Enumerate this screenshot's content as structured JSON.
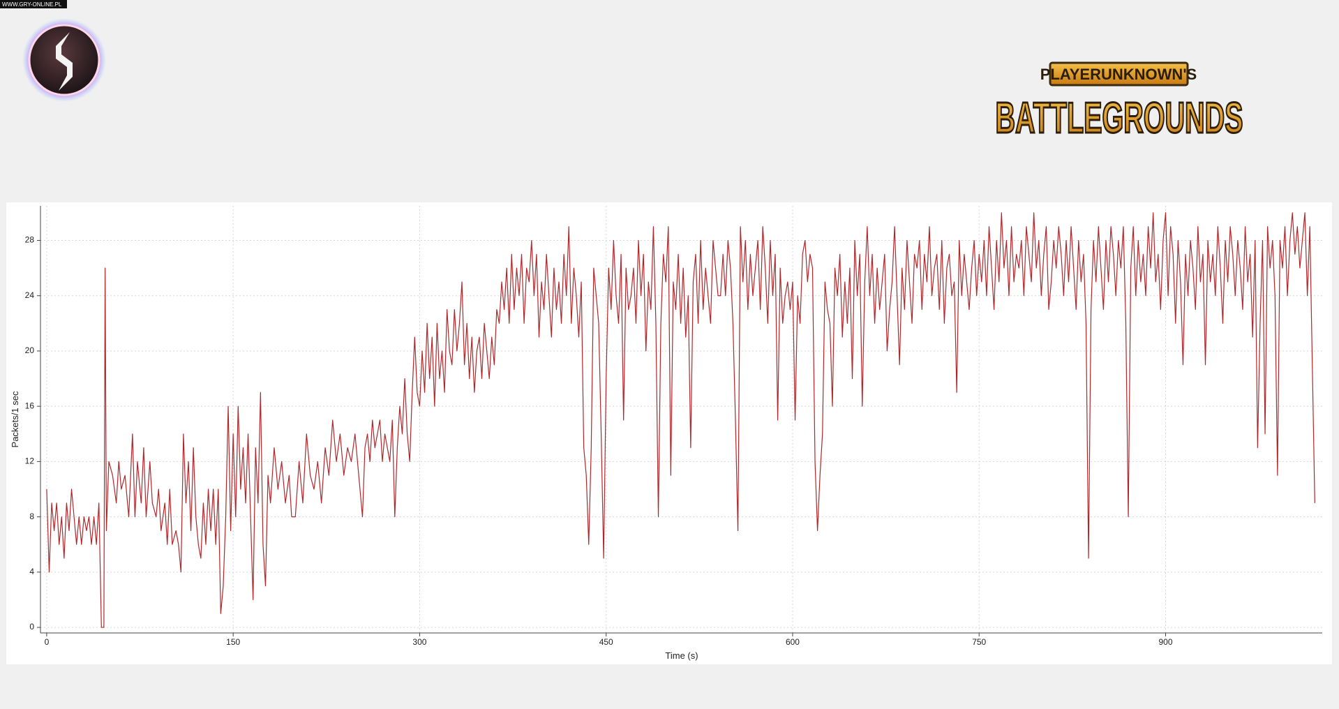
{
  "watermark": "WWW.GRY-ONLINE.PL",
  "brand": {
    "line1": "PLAYERUNKNOWN'S",
    "line2": "BATTLEGROUNDS"
  },
  "chart_data": {
    "type": "line",
    "xlabel": "Time (s)",
    "ylabel": "Packets/1 sec",
    "color": "#b0272b",
    "grid": true,
    "xlim": [
      -5,
      1026
    ],
    "ylim": [
      -0.4,
      30.5
    ],
    "xticks": [
      0,
      150,
      300,
      450,
      600,
      750,
      900
    ],
    "yticks": [
      0,
      4,
      8,
      12,
      16,
      20,
      24,
      28
    ],
    "x": [
      0,
      2,
      4,
      6,
      8,
      10,
      12,
      14,
      16,
      18,
      20,
      22,
      24,
      26,
      28,
      30,
      32,
      34,
      36,
      38,
      40,
      42,
      44,
      46,
      47,
      48,
      50,
      53,
      56,
      58,
      60,
      63,
      66,
      69,
      71,
      73,
      76,
      78,
      80,
      83,
      85,
      88,
      90,
      92,
      95,
      97,
      99,
      101,
      104,
      106,
      108,
      110,
      112,
      114,
      116,
      118,
      120,
      122,
      124,
      126,
      128,
      130,
      132,
      134,
      136,
      138,
      140,
      142,
      144,
      146,
      148,
      150,
      152,
      154,
      156,
      158,
      160,
      162,
      164,
      166,
      168,
      170,
      172,
      174,
      176,
      178,
      180,
      183,
      186,
      189,
      192,
      195,
      197,
      200,
      203,
      206,
      209,
      212,
      215,
      218,
      221,
      224,
      227,
      230,
      233,
      236,
      239,
      242,
      245,
      248,
      251,
      254,
      256,
      258,
      260,
      262,
      264,
      266,
      268,
      270,
      272,
      274,
      276,
      278,
      280,
      282,
      284,
      286,
      288,
      290,
      292,
      294,
      296,
      298,
      300,
      302,
      304,
      306,
      308,
      310,
      312,
      314,
      316,
      318,
      320,
      322,
      324,
      326,
      328,
      330,
      332,
      334,
      336,
      338,
      340,
      342,
      344,
      346,
      348,
      350,
      352,
      354,
      356,
      358,
      360,
      362,
      364,
      366,
      368,
      370,
      372,
      374,
      376,
      378,
      380,
      382,
      384,
      386,
      388,
      390,
      392,
      394,
      396,
      398,
      400,
      402,
      404,
      406,
      408,
      410,
      412,
      414,
      416,
      418,
      420,
      422,
      424,
      426,
      428,
      430,
      432,
      434,
      436,
      438,
      440,
      442,
      444,
      446,
      448,
      450,
      452,
      454,
      456,
      458,
      460,
      462,
      464,
      466,
      468,
      470,
      472,
      474,
      476,
      478,
      480,
      482,
      484,
      486,
      488,
      490,
      492,
      494,
      496,
      498,
      500,
      502,
      504,
      506,
      508,
      510,
      512,
      514,
      516,
      518,
      520,
      522,
      524,
      526,
      528,
      530,
      532,
      534,
      536,
      538,
      540,
      542,
      544,
      546,
      548,
      550,
      552,
      554,
      556,
      558,
      560,
      562,
      564,
      566,
      568,
      570,
      572,
      574,
      576,
      578,
      580,
      582,
      584,
      586,
      588,
      590,
      592,
      594,
      596,
      598,
      600,
      602,
      604,
      606,
      608,
      610,
      612,
      614,
      616,
      618,
      620,
      622,
      624,
      626,
      628,
      630,
      632,
      634,
      636,
      638,
      640,
      642,
      644,
      646,
      648,
      650,
      652,
      654,
      656,
      658,
      660,
      662,
      664,
      666,
      668,
      670,
      672,
      674,
      676,
      678,
      680,
      682,
      684,
      686,
      688,
      690,
      692,
      694,
      696,
      698,
      700,
      702,
      704,
      706,
      708,
      710,
      712,
      714,
      716,
      718,
      720,
      722,
      724,
      726,
      728,
      730,
      732,
      734,
      736,
      738,
      740,
      742,
      744,
      746,
      748,
      750,
      752,
      754,
      756,
      758,
      760,
      762,
      764,
      766,
      768,
      770,
      772,
      774,
      776,
      778,
      780,
      782,
      784,
      786,
      788,
      790,
      792,
      794,
      796,
      798,
      800,
      802,
      804,
      806,
      808,
      810,
      812,
      814,
      816,
      818,
      820,
      822,
      824,
      826,
      828,
      830,
      832,
      834,
      836,
      838,
      840,
      842,
      844,
      846,
      848,
      850,
      852,
      854,
      856,
      858,
      860,
      862,
      864,
      866,
      868,
      870,
      872,
      874,
      876,
      878,
      880,
      882,
      884,
      886,
      888,
      890,
      892,
      894,
      896,
      898,
      900,
      902,
      904,
      906,
      908,
      910,
      912,
      914,
      916,
      918,
      920,
      922,
      924,
      926,
      928,
      930,
      932,
      934,
      936,
      938,
      940,
      942,
      944,
      946,
      948,
      950,
      952,
      954,
      956,
      958,
      960,
      962,
      964,
      966,
      968,
      970,
      972,
      974,
      976,
      978,
      980,
      982,
      984,
      986,
      988,
      990,
      992,
      994,
      996,
      998,
      1000,
      1002,
      1004,
      1006,
      1008,
      1010,
      1012,
      1014,
      1016,
      1018,
      1020
    ],
    "values": [
      10,
      4,
      9,
      7,
      9,
      6,
      8,
      5,
      9,
      7,
      10,
      8,
      6,
      8,
      6,
      8,
      7,
      8,
      6,
      8,
      6,
      9,
      0,
      0,
      26,
      7,
      12,
      11,
      9,
      12,
      10,
      11,
      8,
      14,
      8,
      12,
      9,
      13,
      8,
      12,
      9,
      8,
      10,
      7,
      9,
      6,
      10,
      6,
      7,
      6,
      4,
      14,
      9,
      12,
      7,
      13,
      8,
      6,
      5,
      9,
      6,
      10,
      7,
      10,
      6,
      10,
      1,
      3,
      8,
      16,
      7,
      14,
      8,
      16,
      10,
      13,
      9,
      14,
      8,
      2,
      13,
      9,
      17,
      6,
      3,
      11,
      9,
      13,
      10,
      12,
      9,
      11,
      8,
      8,
      12,
      9,
      14,
      11,
      10,
      12,
      9,
      13,
      11,
      15,
      12,
      14,
      11,
      13,
      12,
      14,
      11,
      8,
      13,
      14,
      12,
      15,
      13,
      14,
      15,
      12,
      14,
      13,
      12,
      15,
      8,
      13,
      16,
      14,
      18,
      14,
      12,
      17,
      21,
      17,
      16,
      20,
      17,
      22,
      18,
      21,
      16,
      22,
      18,
      20,
      17,
      23,
      20,
      19,
      23,
      20,
      22,
      25,
      19,
      22,
      18,
      21,
      17,
      20,
      21,
      18,
      22,
      20,
      18,
      21,
      19,
      23,
      22,
      25,
      23,
      26,
      22,
      27,
      23,
      26,
      24,
      27,
      22,
      26,
      25,
      28,
      24,
      27,
      21,
      25,
      23,
      27,
      24,
      21,
      26,
      23,
      25,
      22,
      27,
      24,
      29,
      22,
      26,
      24,
      21,
      25,
      13,
      11,
      6,
      13,
      26,
      24,
      22,
      14,
      5,
      18,
      26,
      23,
      28,
      24,
      22,
      27,
      15,
      26,
      23,
      24,
      26,
      22,
      28,
      24,
      27,
      20,
      25,
      23,
      29,
      22,
      8,
      22,
      27,
      25,
      29,
      11,
      25,
      23,
      27,
      22,
      26,
      21,
      24,
      13,
      25,
      27,
      22,
      28,
      23,
      26,
      24,
      22,
      28,
      26,
      24,
      24,
      27,
      24,
      28,
      26,
      22,
      15,
      7,
      29,
      25,
      28,
      23,
      27,
      24,
      26,
      28,
      23,
      29,
      26,
      22,
      28,
      24,
      27,
      15,
      26,
      22,
      24,
      25,
      23,
      25,
      15,
      24,
      22,
      27,
      28,
      25,
      27,
      26,
      12,
      7,
      11,
      14,
      25,
      23,
      22,
      16,
      26,
      24,
      27,
      21,
      25,
      22,
      26,
      18,
      28,
      24,
      27,
      16,
      25,
      29,
      24,
      27,
      22,
      26,
      23,
      25,
      27,
      20,
      23,
      25,
      29,
      24,
      19,
      26,
      23,
      28,
      25,
      22,
      27,
      26,
      28,
      23,
      27,
      25,
      29,
      24,
      26,
      27,
      23,
      28,
      22,
      26,
      27,
      24,
      25,
      17,
      28,
      24,
      27,
      25,
      23,
      26,
      28,
      24,
      27,
      25,
      28,
      24,
      29,
      26,
      23,
      28,
      25,
      30,
      26,
      28,
      24,
      29,
      25,
      27,
      26,
      28,
      24,
      29,
      27,
      25,
      30,
      26,
      28,
      24,
      27,
      29,
      23,
      25,
      28,
      26,
      29,
      27,
      24,
      28,
      25,
      29,
      26,
      23,
      28,
      25,
      27,
      22,
      5,
      23,
      28,
      25,
      29,
      26,
      23,
      28,
      25,
      29,
      27,
      24,
      28,
      26,
      29,
      22,
      8,
      26,
      29,
      24,
      28,
      25,
      27,
      24,
      29,
      26,
      30,
      25,
      27,
      23,
      28,
      30,
      24,
      29,
      27,
      22,
      28,
      25,
      19,
      27,
      24,
      28,
      26,
      23,
      29,
      25,
      27,
      19,
      28,
      25,
      27,
      24,
      29,
      26,
      22,
      28,
      25,
      29,
      27,
      24,
      28,
      26,
      23,
      29,
      25,
      27,
      21,
      28,
      13,
      22,
      28,
      14,
      29,
      26,
      28,
      24,
      11,
      28,
      26,
      29,
      24,
      28,
      30,
      27,
      29,
      26,
      28,
      30,
      24,
      29,
      19,
      9
    ]
  }
}
